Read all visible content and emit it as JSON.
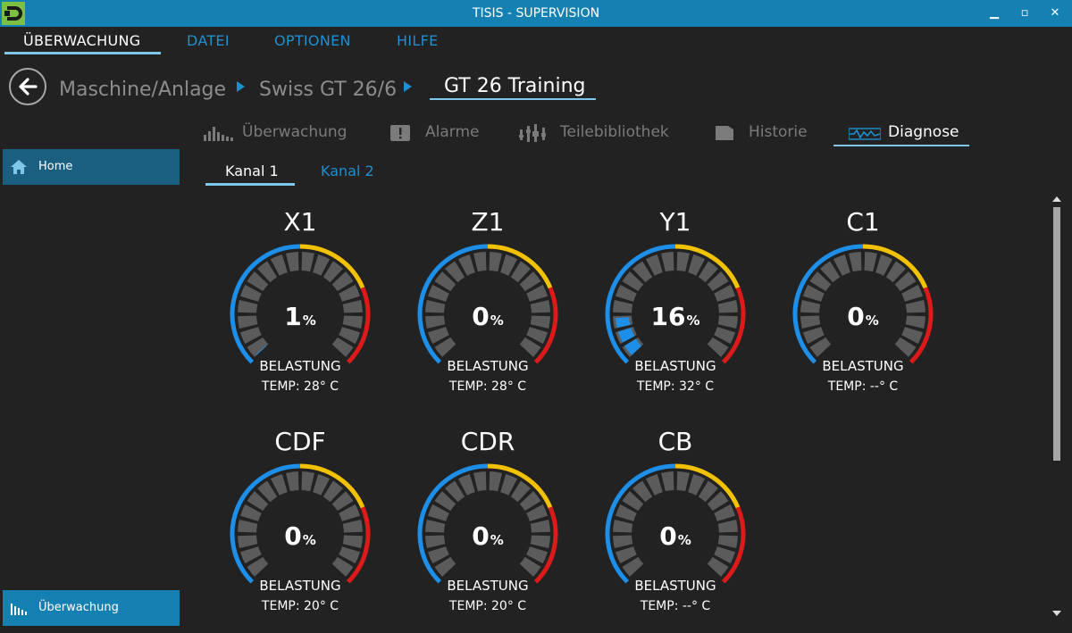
{
  "window": {
    "title": "TISIS - SUPERVISION",
    "minimize": "▁",
    "maximize": "▫",
    "close": "✕"
  },
  "menu": [
    {
      "label": "ÜBERWACHUNG",
      "active": true
    },
    {
      "label": "DATEI",
      "active": false
    },
    {
      "label": "OPTIONEN",
      "active": false
    },
    {
      "label": "HILFE",
      "active": false
    }
  ],
  "breadcrumb": {
    "items": [
      "Maschine/Anlage",
      "Swiss GT 26/6"
    ],
    "current": "GT 26 Training"
  },
  "tabs": [
    {
      "label": "Überwachung",
      "icon": "bar-chart-icon",
      "active": false
    },
    {
      "label": "Alarme",
      "icon": "alert-icon",
      "active": false
    },
    {
      "label": "Teilebibliothek",
      "icon": "tool-library-icon",
      "active": false
    },
    {
      "label": "Historie",
      "icon": "history-icon",
      "active": false
    },
    {
      "label": "Diagnose",
      "icon": "waveform-icon",
      "active": true
    }
  ],
  "subtabs": [
    {
      "label": "Kanal 1",
      "active": true
    },
    {
      "label": "Kanal 2",
      "active": false
    }
  ],
  "sidebar": {
    "home": {
      "label": "Home",
      "icon": "home-icon"
    },
    "bottom": {
      "label": "Überwachung",
      "icon": "bar-chart-icon"
    }
  },
  "colors": {
    "accent": "#1580b2",
    "gauge_blue": "#1e8fe8",
    "gauge_yellow": "#f2c200",
    "gauge_red": "#dd1a1a",
    "segment_inactive": "#5b5b5b",
    "segment_active": "#1e8fe8"
  },
  "gauges": [
    {
      "name": "X1",
      "value": 1,
      "unit": "%",
      "load_label": "BELASTUNG",
      "temp": "TEMP: 28° C"
    },
    {
      "name": "Z1",
      "value": 0,
      "unit": "%",
      "load_label": "BELASTUNG",
      "temp": "TEMP: 28° C"
    },
    {
      "name": "Y1",
      "value": 16,
      "unit": "%",
      "load_label": "BELASTUNG",
      "temp": "TEMP: 32° C"
    },
    {
      "name": "C1",
      "value": 0,
      "unit": "%",
      "load_label": "BELASTUNG",
      "temp": "TEMP: --° C"
    },
    {
      "name": "CDF",
      "value": 0,
      "unit": "%",
      "load_label": "BELASTUNG",
      "temp": "TEMP: 20° C"
    },
    {
      "name": "CDR",
      "value": 0,
      "unit": "%",
      "load_label": "BELASTUNG",
      "temp": "TEMP: 20° C"
    },
    {
      "name": "CB",
      "value": 0,
      "unit": "%",
      "load_label": "BELASTUNG",
      "temp": "TEMP: --° C"
    }
  ]
}
